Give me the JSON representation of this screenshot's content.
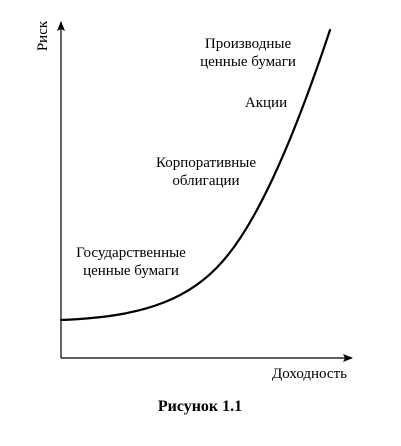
{
  "figure": {
    "caption": "Рисунок 1.1",
    "y_axis_label": "Риск",
    "x_axis_label": "Доходность",
    "line_color": "#000000",
    "background_color": "#ffffff"
  },
  "curve_labels": {
    "derivatives_line1": "Производные",
    "derivatives_line2": "ценные бумаги",
    "stocks": "Акции",
    "corporate_line1": "Корпоративные",
    "corporate_line2": "облигации",
    "government_line1": "Государственные",
    "government_line2": "ценные бумаги"
  }
}
